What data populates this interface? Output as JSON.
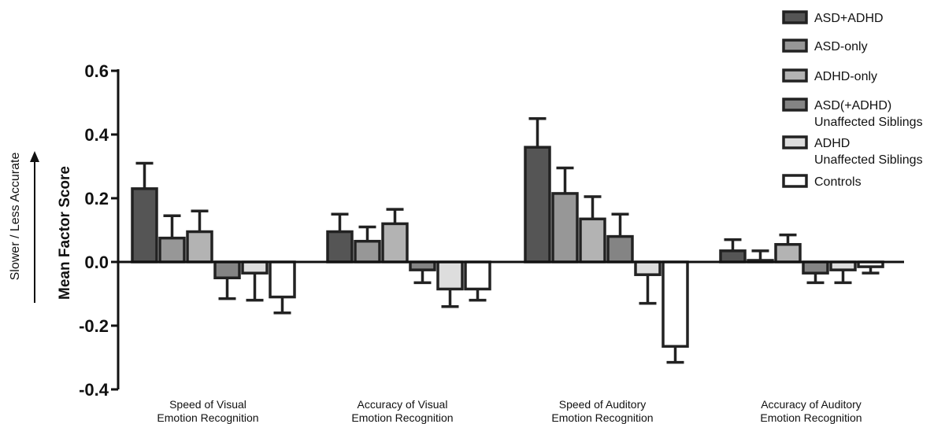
{
  "chart_data": {
    "type": "bar",
    "ylabel": "Mean Factor Score",
    "annotation": "Slower / Less Accurate",
    "ylim": [
      -0.4,
      0.6
    ],
    "yticks": [
      "0.6",
      "0.4",
      "0.2",
      "0.0",
      "-0.2",
      "-0.4"
    ],
    "ytick_values": [
      0.6,
      0.4,
      0.2,
      0.0,
      -0.2,
      -0.4
    ],
    "categories": [
      [
        "Speed of Visual",
        "Emotion Recognition"
      ],
      [
        "Accuracy of Visual",
        "Emotion Recognition"
      ],
      [
        "Speed of Auditory",
        "Emotion Recognition"
      ],
      [
        "Accuracy of Auditory",
        "Emotion Recognition"
      ]
    ],
    "series": [
      {
        "name": [
          "ASD+ADHD"
        ],
        "color": "#555555",
        "values": [
          0.23,
          0.095,
          0.36,
          0.035
        ],
        "errors": [
          0.08,
          0.055,
          0.09,
          0.035
        ]
      },
      {
        "name": [
          "ASD-only"
        ],
        "color": "#979797",
        "values": [
          0.075,
          0.065,
          0.215,
          0.005
        ],
        "errors": [
          0.07,
          0.045,
          0.08,
          0.03
        ]
      },
      {
        "name": [
          "ADHD-only"
        ],
        "color": "#b3b3b3",
        "values": [
          0.095,
          0.12,
          0.135,
          0.055
        ],
        "errors": [
          0.065,
          0.045,
          0.07,
          0.03
        ]
      },
      {
        "name": [
          "ASD(+ADHD)",
          "Unaffected Siblings"
        ],
        "color": "#848484",
        "values": [
          -0.05,
          -0.025,
          0.08,
          -0.035
        ],
        "errors": [
          0.065,
          0.04,
          0.07,
          0.03
        ]
      },
      {
        "name": [
          "ADHD",
          "Unaffected Siblings"
        ],
        "color": "#dddddd",
        "values": [
          -0.035,
          -0.085,
          -0.04,
          -0.025
        ],
        "errors": [
          0.085,
          0.055,
          0.09,
          0.04
        ]
      },
      {
        "name": [
          "Controls"
        ],
        "color": "#ffffff",
        "values": [
          -0.11,
          -0.085,
          -0.265,
          -0.015
        ],
        "errors": [
          0.05,
          0.035,
          0.05,
          0.02
        ]
      }
    ],
    "legend_position": "top-right",
    "grid": false
  }
}
